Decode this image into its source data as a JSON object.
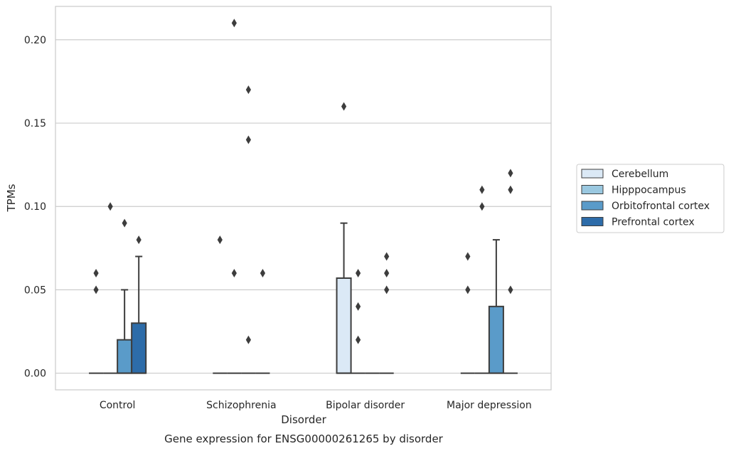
{
  "chart_data": {
    "type": "box",
    "xlabel": "Disorder",
    "ylabel": "TPMs",
    "caption": "Gene expression for ENSG00000261265 by disorder",
    "ylim": [
      -0.01,
      0.22
    ],
    "yticks": [
      0.0,
      0.05,
      0.1,
      0.15,
      0.2
    ],
    "ytick_labels": [
      "0.00",
      "0.05",
      "0.10",
      "0.15",
      "0.20"
    ],
    "grid": "horizontal",
    "legend_placement": "right",
    "categories": [
      "Control",
      "Schizophrenia",
      "Bipolar disorder",
      "Major depression"
    ],
    "series": [
      {
        "name": "Cerebellum",
        "color": "#dbe9f6",
        "boxes": [
          {
            "q1": 0.0,
            "median": 0.0,
            "q3": 0.0,
            "whisker_low": 0.0,
            "whisker_high": 0.0,
            "outliers": [
              0.05,
              0.06
            ]
          },
          {
            "q1": 0.0,
            "median": 0.0,
            "q3": 0.0,
            "whisker_low": 0.0,
            "whisker_high": 0.0,
            "outliers": [
              0.08
            ]
          },
          {
            "q1": 0.0,
            "median": 0.0,
            "q3": 0.057,
            "whisker_low": 0.0,
            "whisker_high": 0.09,
            "outliers": [
              0.16
            ]
          },
          {
            "q1": 0.0,
            "median": 0.0,
            "q3": 0.0,
            "whisker_low": 0.0,
            "whisker_high": 0.0,
            "outliers": [
              0.05,
              0.07
            ]
          }
        ]
      },
      {
        "name": "Hipppocampus",
        "color": "#9ac8e0",
        "boxes": [
          {
            "q1": 0.0,
            "median": 0.0,
            "q3": 0.0,
            "whisker_low": 0.0,
            "whisker_high": 0.0,
            "outliers": [
              0.1
            ]
          },
          {
            "q1": 0.0,
            "median": 0.0,
            "q3": 0.0,
            "whisker_low": 0.0,
            "whisker_high": 0.0,
            "outliers": [
              0.06,
              0.21
            ]
          },
          {
            "q1": 0.0,
            "median": 0.0,
            "q3": 0.0,
            "whisker_low": 0.0,
            "whisker_high": 0.0,
            "outliers": [
              0.02,
              0.04,
              0.06
            ]
          },
          {
            "q1": 0.0,
            "median": 0.0,
            "q3": 0.0,
            "whisker_low": 0.0,
            "whisker_high": 0.0,
            "outliers": [
              0.1,
              0.11
            ]
          }
        ]
      },
      {
        "name": "Orbitofrontal cortex",
        "color": "#5a9bc9",
        "boxes": [
          {
            "q1": 0.0,
            "median": 0.0,
            "q3": 0.02,
            "whisker_low": 0.0,
            "whisker_high": 0.05,
            "outliers": [
              0.09
            ]
          },
          {
            "q1": 0.0,
            "median": 0.0,
            "q3": 0.0,
            "whisker_low": 0.0,
            "whisker_high": 0.0,
            "outliers": [
              0.02,
              0.14,
              0.17
            ]
          },
          {
            "q1": 0.0,
            "median": 0.0,
            "q3": 0.0,
            "whisker_low": 0.0,
            "whisker_high": 0.0,
            "outliers": []
          },
          {
            "q1": 0.0,
            "median": 0.0,
            "q3": 0.04,
            "whisker_low": 0.0,
            "whisker_high": 0.08,
            "outliers": []
          }
        ]
      },
      {
        "name": "Prefrontal cortex",
        "color": "#2d6ca9",
        "boxes": [
          {
            "q1": 0.0,
            "median": 0.0,
            "q3": 0.03,
            "whisker_low": 0.0,
            "whisker_high": 0.07,
            "outliers": [
              0.08
            ]
          },
          {
            "q1": 0.0,
            "median": 0.0,
            "q3": 0.0,
            "whisker_low": 0.0,
            "whisker_high": 0.0,
            "outliers": [
              0.06
            ]
          },
          {
            "q1": 0.0,
            "median": 0.0,
            "q3": 0.0,
            "whisker_low": 0.0,
            "whisker_high": 0.0,
            "outliers": [
              0.05,
              0.06,
              0.07
            ]
          },
          {
            "q1": 0.0,
            "median": 0.0,
            "q3": 0.0,
            "whisker_low": 0.0,
            "whisker_high": 0.0,
            "outliers": [
              0.05,
              0.11,
              0.12
            ]
          }
        ]
      }
    ]
  }
}
